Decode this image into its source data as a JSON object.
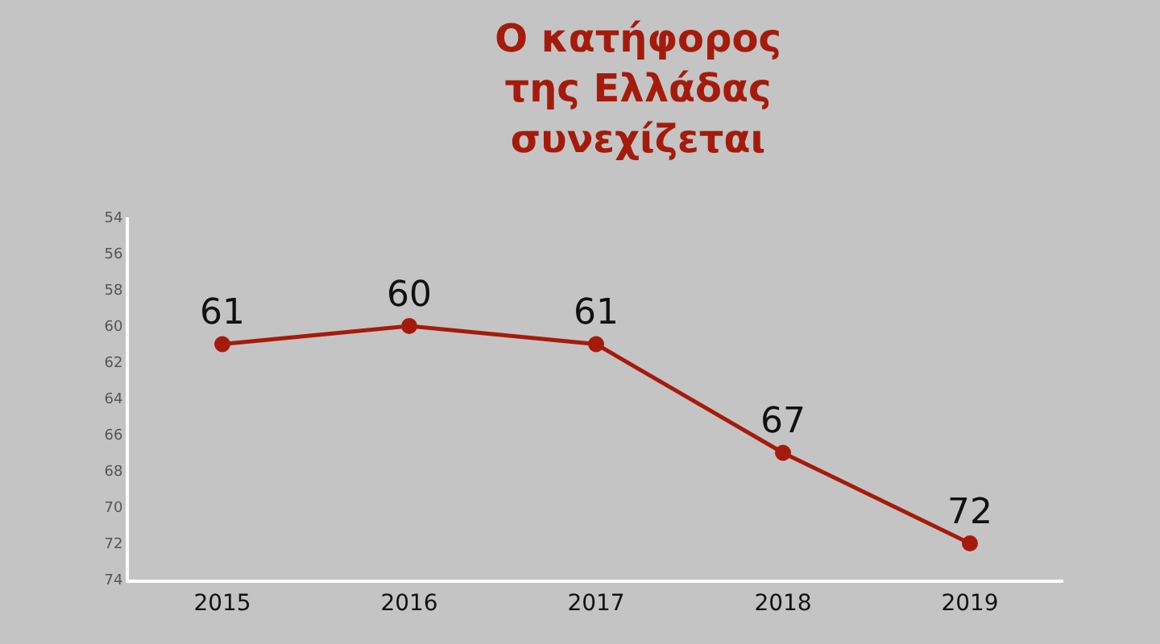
{
  "chart_data": {
    "type": "line",
    "title": "Ο κατήφορος\nτης Ελλάδας\nσυνεχίζεται",
    "categories": [
      "2015",
      "2016",
      "2017",
      "2018",
      "2019"
    ],
    "series": [
      {
        "color": "#a51b0b",
        "values": [
          61,
          60,
          61,
          67,
          72
        ]
      }
    ],
    "ylim": [
      74,
      54
    ],
    "yticks": [
      54,
      56,
      58,
      60,
      62,
      64,
      66,
      68,
      70,
      72,
      74
    ],
    "data_labels": true,
    "marker": "circle",
    "line_style": "solid",
    "grid": false,
    "legend": false
  }
}
